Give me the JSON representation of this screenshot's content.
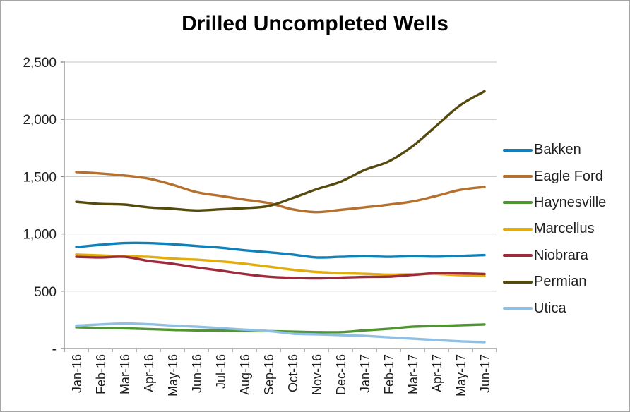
{
  "chart_data": {
    "type": "line",
    "title": "Drilled Uncompleted Wells",
    "xlabel": "",
    "ylabel": "",
    "x": [
      "Jan-16",
      "Feb-16",
      "Mar-16",
      "Apr-16",
      "May-16",
      "Jun-16",
      "Jul-16",
      "Aug-16",
      "Sep-16",
      "Oct-16",
      "Nov-16",
      "Dec-16",
      "Jan-17",
      "Feb-17",
      "Mar-17",
      "Apr-17",
      "May-17",
      "Jun-17"
    ],
    "series": [
      {
        "name": "Bakken",
        "color": "#1080b8",
        "values": [
          885,
          905,
          920,
          920,
          910,
          895,
          880,
          858,
          840,
          820,
          795,
          800,
          805,
          800,
          805,
          802,
          808,
          815
        ]
      },
      {
        "name": "Eagle Ford",
        "color": "#b5702d",
        "values": [
          1540,
          1528,
          1510,
          1483,
          1430,
          1365,
          1332,
          1300,
          1270,
          1215,
          1190,
          1210,
          1232,
          1255,
          1283,
          1332,
          1385,
          1410
        ]
      },
      {
        "name": "Haynesville",
        "color": "#4f9633",
        "values": [
          185,
          180,
          176,
          170,
          163,
          158,
          157,
          154,
          152,
          147,
          143,
          143,
          158,
          172,
          190,
          197,
          203,
          210
        ]
      },
      {
        "name": "Marcellus",
        "color": "#e2ad0c",
        "values": [
          820,
          812,
          805,
          800,
          785,
          775,
          760,
          740,
          715,
          688,
          668,
          658,
          652,
          645,
          648,
          650,
          640,
          635
        ]
      },
      {
        "name": "Niobrara",
        "color": "#9e2b3c",
        "values": [
          800,
          795,
          800,
          765,
          740,
          708,
          680,
          650,
          627,
          617,
          612,
          618,
          625,
          627,
          642,
          658,
          655,
          650
        ]
      },
      {
        "name": "Permian",
        "color": "#554a0e",
        "values": [
          1280,
          1262,
          1256,
          1232,
          1220,
          1205,
          1215,
          1225,
          1243,
          1312,
          1390,
          1455,
          1558,
          1632,
          1765,
          1945,
          2125,
          2245
        ]
      },
      {
        "name": "Utica",
        "color": "#8fc0e4",
        "values": [
          200,
          210,
          218,
          212,
          200,
          190,
          178,
          165,
          153,
          130,
          124,
          117,
          110,
          98,
          86,
          74,
          63,
          56
        ]
      }
    ],
    "ylim": [
      0,
      2500
    ],
    "ytick_interval": 500,
    "ytick_labels": [
      "-",
      "500",
      "1,000",
      "1,500",
      "2,000",
      "2,500"
    ],
    "grid": true,
    "legend_position": "right"
  },
  "colors": {
    "gridline": "#c6c6c6",
    "axis": "#8c8c8c",
    "tick_text": "#1f1f1f",
    "title_text": "#000000",
    "background": "#ffffff",
    "border": "#a6a6a6"
  }
}
